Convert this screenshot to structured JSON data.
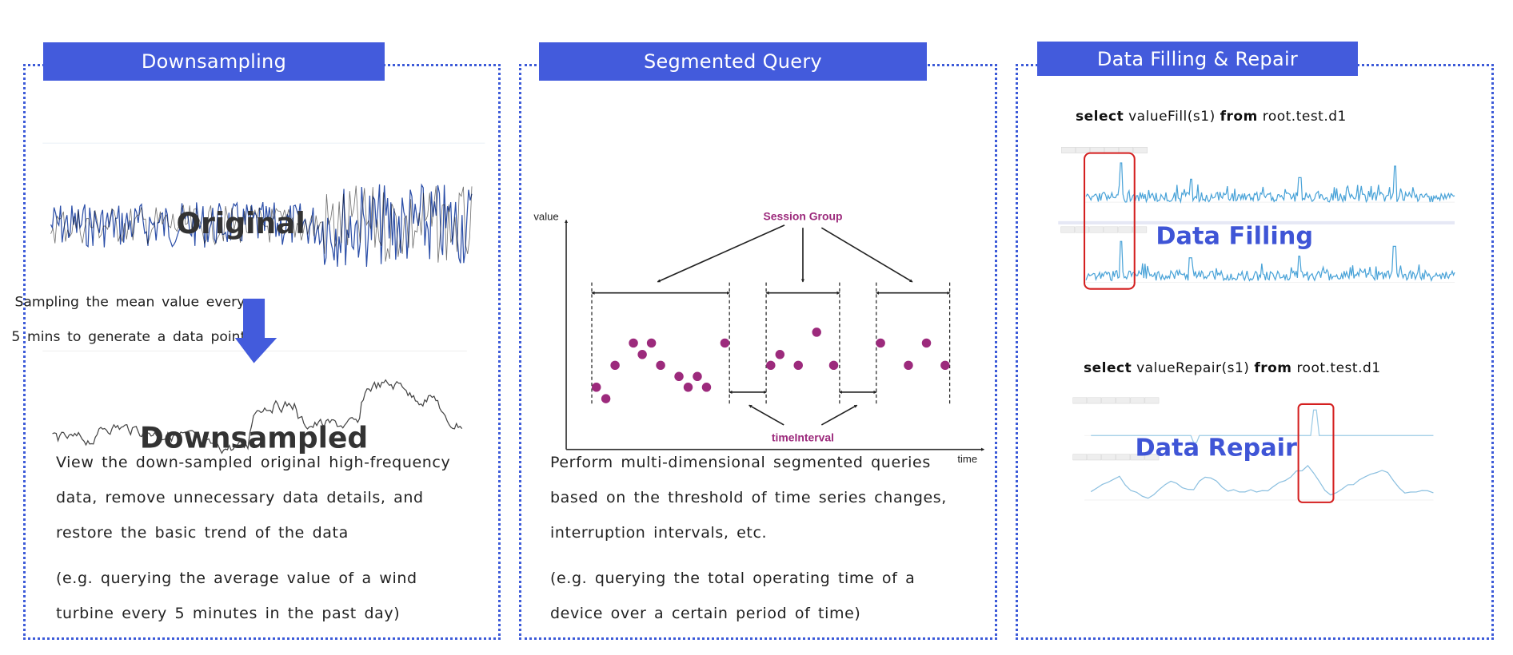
{
  "panels": [
    {
      "title": "Downsampling",
      "original_label": "Original",
      "downsampled_label": "Downsampled",
      "sampling_note": [
        "Sampling the mean value every",
        "5 mins to generate a data point"
      ],
      "description": [
        "View the down-sampled original high-frequency",
        "data, remove unnecessary data details, and",
        "restore the basic trend of the data"
      ],
      "example": [
        "(e.g. querying the average value of a wind",
        "turbine every 5 minutes in the past day)"
      ]
    },
    {
      "title": "Segmented Query",
      "diagram": {
        "y_axis": "value",
        "x_axis": "time",
        "session_label": "Session Group",
        "interval_label": "timeInterval"
      },
      "description": [
        "Perform multi-dimensional segmented queries",
        "based on the threshold of time series changes,",
        "interruption intervals, etc."
      ],
      "example": [
        "(e.g. querying the total operating time of a",
        "device over a certain period of time)"
      ]
    },
    {
      "title": "Data Filling & Repair",
      "fill_query": {
        "kw1": "select",
        "func": "valueFill(s1)",
        "kw2": "from",
        "path": "root.test.d1"
      },
      "fill_label": "Data Filling",
      "repair_query": {
        "kw1": "select",
        "func": "valueRepair(s1)",
        "kw2": "from",
        "path": "root.test.d1"
      },
      "repair_label": "Data Repair"
    }
  ],
  "colors": {
    "header": "#435bdc",
    "border": "#3c5ad8",
    "session": "#9c2a7c",
    "highlight": "#d41f1f",
    "series": "#4aa3d8"
  }
}
